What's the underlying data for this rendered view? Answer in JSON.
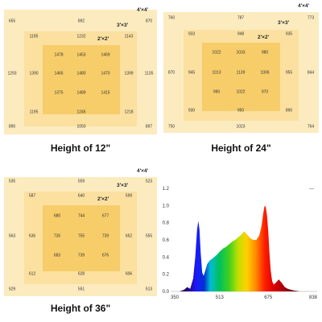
{
  "panels": [
    {
      "caption": "Height of 12\"",
      "labels": {
        "outer": "4'×4'",
        "mid": "3'×3'",
        "inner": "2'×2'"
      },
      "outer": [
        "655",
        "892",
        "870",
        "1293",
        "1135",
        "890",
        "1050",
        "897"
      ],
      "mid": [
        "1195",
        "1232",
        "1143",
        "1390",
        "1399",
        "1195",
        "1245",
        "1218"
      ],
      "inner": [
        "1478",
        "1453",
        "1469",
        "1465",
        "1480",
        "1470",
        "1375",
        "1489",
        "1415"
      ]
    },
    {
      "caption": "Height of 24\"",
      "labels": {
        "outer": "4'×4'",
        "mid": "3'×3'",
        "inner": "2'×2'"
      },
      "outer": [
        "760",
        "787",
        "773",
        "870",
        "844",
        "750",
        "1023",
        "764"
      ],
      "mid": [
        "933",
        "948",
        "935",
        "945",
        "955",
        "930",
        "950",
        "890"
      ],
      "inner": [
        "1022",
        "1033",
        "980",
        "1013",
        "1139",
        "1006",
        "990",
        "1022",
        "970"
      ]
    },
    {
      "caption": "Height of 36\"",
      "labels": {
        "outer": "4'×4'",
        "mid": "3'×3'",
        "inner": "2'×2'"
      },
      "outer": [
        "535",
        "559",
        "523",
        "563",
        "555",
        "529",
        "551",
        "513"
      ],
      "mid": [
        "587",
        "640",
        "599",
        "636",
        "652",
        "612",
        "628",
        "606"
      ],
      "inner": [
        "680",
        "744",
        "677",
        "735",
        "755",
        "739",
        "683",
        "739",
        "676"
      ]
    }
  ],
  "chart_data": {
    "type": "area",
    "title": "",
    "xlabel": "",
    "ylabel": "",
    "xlim": [
      350,
      838
    ],
    "ylim": [
      0,
      1.2
    ],
    "x_ticks": [
      "350",
      "513",
      "675",
      "838"
    ],
    "y_ticks": [
      "0.0",
      "0.2",
      "0.4",
      "0.6",
      "0.8",
      "1.0",
      "1.2"
    ],
    "legend_text": "---",
    "series": [
      {
        "x": [
          350,
          380,
          395,
          405,
          415,
          425,
          432,
          438,
          442,
          446,
          450,
          455,
          460,
          466,
          472,
          480,
          488,
          495,
          505,
          515,
          525,
          535,
          545,
          555,
          565,
          575,
          585,
          595,
          605,
          615,
          625,
          635,
          645,
          652,
          658,
          663,
          667,
          671,
          675,
          679,
          683,
          688,
          693,
          700,
          710,
          720,
          730,
          740,
          750,
          760,
          780,
          800,
          838
        ],
        "y": [
          0,
          0,
          0.02,
          0.05,
          0.03,
          0.15,
          0.4,
          0.72,
          0.82,
          0.72,
          0.45,
          0.22,
          0.18,
          0.25,
          0.32,
          0.36,
          0.38,
          0.4,
          0.43,
          0.47,
          0.5,
          0.52,
          0.55,
          0.58,
          0.6,
          0.63,
          0.66,
          0.7,
          0.66,
          0.62,
          0.6,
          0.6,
          0.65,
          0.75,
          0.9,
          1.0,
          0.98,
          0.88,
          0.7,
          0.45,
          0.25,
          0.12,
          0.08,
          0.1,
          0.14,
          0.1,
          0.05,
          0.03,
          0.02,
          0.01,
          0,
          0,
          0
        ]
      }
    ]
  }
}
